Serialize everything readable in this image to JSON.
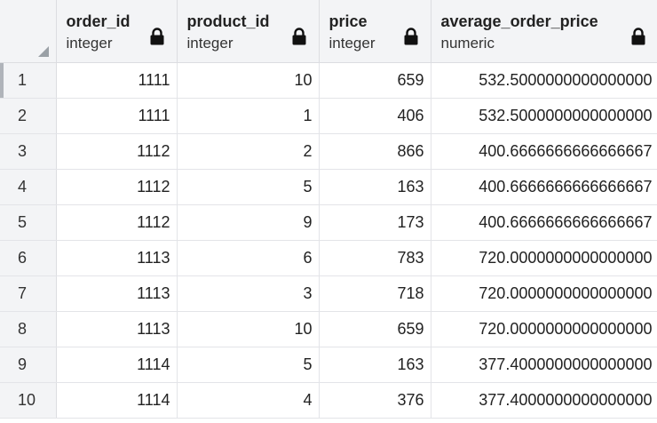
{
  "columns": [
    {
      "name": "order_id",
      "type": "integer",
      "icon": "lock-icon"
    },
    {
      "name": "product_id",
      "type": "integer",
      "icon": "lock-icon"
    },
    {
      "name": "price",
      "type": "integer",
      "icon": "lock-icon"
    },
    {
      "name": "average_order_price",
      "type": "numeric",
      "icon": "lock-icon"
    }
  ],
  "rows": [
    {
      "num": "1",
      "order_id": "1111",
      "product_id": "10",
      "price": "659",
      "average_order_price": "532.5000000000000000"
    },
    {
      "num": "2",
      "order_id": "1111",
      "product_id": "1",
      "price": "406",
      "average_order_price": "532.5000000000000000"
    },
    {
      "num": "3",
      "order_id": "1112",
      "product_id": "2",
      "price": "866",
      "average_order_price": "400.6666666666666667"
    },
    {
      "num": "4",
      "order_id": "1112",
      "product_id": "5",
      "price": "163",
      "average_order_price": "400.6666666666666667"
    },
    {
      "num": "5",
      "order_id": "1112",
      "product_id": "9",
      "price": "173",
      "average_order_price": "400.6666666666666667"
    },
    {
      "num": "6",
      "order_id": "1113",
      "product_id": "6",
      "price": "783",
      "average_order_price": "720.0000000000000000"
    },
    {
      "num": "7",
      "order_id": "1113",
      "product_id": "3",
      "price": "718",
      "average_order_price": "720.0000000000000000"
    },
    {
      "num": "8",
      "order_id": "1113",
      "product_id": "10",
      "price": "659",
      "average_order_price": "720.0000000000000000"
    },
    {
      "num": "9",
      "order_id": "1114",
      "product_id": "5",
      "price": "163",
      "average_order_price": "377.4000000000000000"
    },
    {
      "num": "10",
      "order_id": "1114",
      "product_id": "4",
      "price": "376",
      "average_order_price": "377.4000000000000000"
    }
  ]
}
